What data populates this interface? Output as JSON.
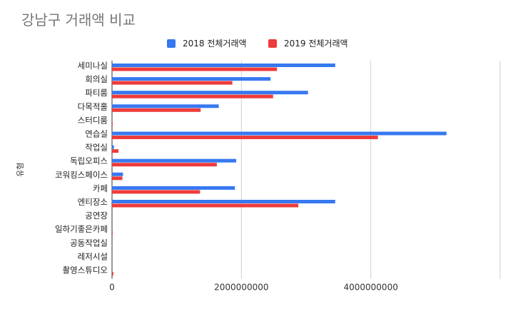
{
  "chart_data": {
    "type": "bar",
    "orientation": "horizontal",
    "title": "강남구 거래액 비교",
    "ylabel": "유형",
    "xlabel": "",
    "legend_position": "top",
    "grid": true,
    "xlim": [
      0,
      6000000000
    ],
    "x_ticks": [
      "0",
      "2000000000",
      "4000000000"
    ],
    "categories": [
      "세미나실",
      "회의실",
      "파티룸",
      "다목적홀",
      "스터디룸",
      "연습실",
      "작업실",
      "독립오피스",
      "코워킹스페이스",
      "카페",
      "엔티장소",
      "공연장",
      "일하기좋은카페",
      "공동작업실",
      "레저시설",
      "촬영스튜디오"
    ],
    "series": [
      {
        "name": "2018 전체거래액",
        "color": "#3778f0",
        "values": [
          3450000000,
          2450000000,
          3030000000,
          1650000000,
          0,
          5170000000,
          30000000,
          1920000000,
          170000000,
          1900000000,
          3450000000,
          0,
          0,
          0,
          0,
          0
        ]
      },
      {
        "name": "2019 전체거래액",
        "color": "#ee3b3b",
        "values": [
          2550000000,
          1860000000,
          2490000000,
          1370000000,
          10000000,
          4110000000,
          100000000,
          1620000000,
          160000000,
          1360000000,
          2880000000,
          0,
          10000000,
          0,
          0,
          20000000
        ]
      }
    ]
  }
}
